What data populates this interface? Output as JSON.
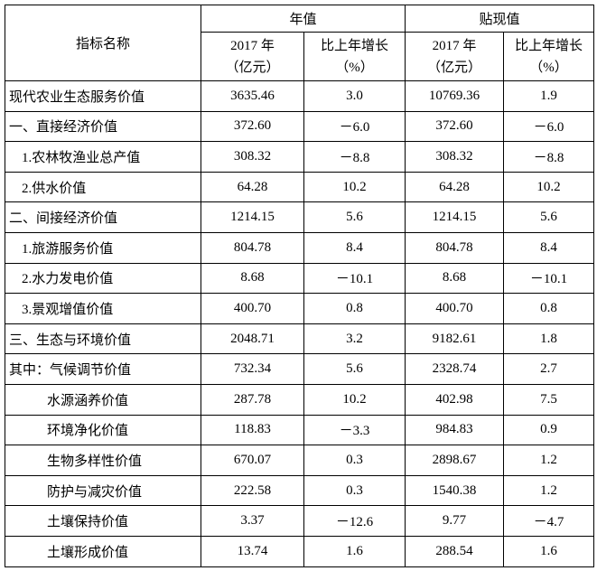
{
  "table": {
    "header": {
      "name": "指标名称",
      "groups": [
        "年值",
        "贴现值"
      ],
      "subs": [
        [
          "2017 年",
          "（亿元）"
        ],
        [
          "比上年增长",
          "（%）"
        ],
        [
          "2017 年",
          "（亿元）"
        ],
        [
          "比上年增长",
          "（%）"
        ]
      ]
    },
    "rows": [
      [
        "现代农业生态服务价值",
        "3635.46",
        "3.0",
        "10769.36",
        "1.9"
      ],
      [
        "一、直接经济价值",
        "372.60",
        "－6.0",
        "372.60",
        "－6.0"
      ],
      [
        "1.农林牧渔业总产值",
        "308.32",
        "－8.8",
        "308.32",
        "－8.8"
      ],
      [
        "2.供水价值",
        "64.28",
        "10.2",
        "64.28",
        "10.2"
      ],
      [
        "二、间接经济价值",
        "1214.15",
        "5.6",
        "1214.15",
        "5.6"
      ],
      [
        "1.旅游服务价值",
        "804.78",
        "8.4",
        "804.78",
        "8.4"
      ],
      [
        "2.水力发电价值",
        "8.68",
        "－10.1",
        "8.68",
        "－10.1"
      ],
      [
        "3.景观增值价值",
        "400.70",
        "0.8",
        "400.70",
        "0.8"
      ],
      [
        "三、生态与环境价值",
        "2048.71",
        "3.2",
        "9182.61",
        "1.8"
      ],
      [
        "其中：气候调节价值",
        "732.34",
        "5.6",
        "2328.74",
        "2.7"
      ],
      [
        "水源涵养价值",
        "287.78",
        "10.2",
        "402.98",
        "7.5"
      ],
      [
        "环境净化价值",
        "118.83",
        "－3.3",
        "984.83",
        "0.9"
      ],
      [
        "生物多样性价值",
        "670.07",
        "0.3",
        "2898.67",
        "1.2"
      ],
      [
        "防护与减灾价值",
        "222.58",
        "0.3",
        "1540.38",
        "1.2"
      ],
      [
        "土壤保持价值",
        "3.37",
        "－12.6",
        "9.77",
        "－4.7"
      ],
      [
        "土壤形成价值",
        "13.74",
        "1.6",
        "288.54",
        "1.6"
      ]
    ]
  }
}
